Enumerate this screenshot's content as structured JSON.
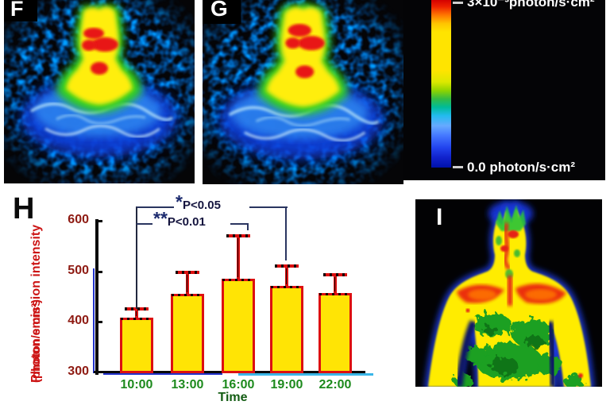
{
  "panels": {
    "f": {
      "label": "F",
      "description": "photon emission image, head and shoulders"
    },
    "g": {
      "label": "G",
      "description": "photon emission image, head and shoulders"
    },
    "h": {
      "label": "H"
    },
    "i": {
      "label": "I",
      "description": "thermographic image, upper torso"
    }
  },
  "colorbar": {
    "max_label": "3×10⁻³photon/s·cm²",
    "min_label": "0.0 photon/s·cm²",
    "gradient_stops": [
      [
        "#d40000",
        0
      ],
      [
        "#ee2200",
        4
      ],
      [
        "#ff7700",
        9
      ],
      [
        "#ffc400",
        14
      ],
      [
        "#ffe400",
        19
      ],
      [
        "#ffe400",
        42
      ],
      [
        "#dbe800",
        49
      ],
      [
        "#8fd400",
        54
      ],
      [
        "#33bb44",
        59
      ],
      [
        "#00bb99",
        64
      ],
      [
        "#22bbee",
        69
      ],
      [
        "#66aaff",
        75
      ],
      [
        "#4477ff",
        81
      ],
      [
        "#2244ee",
        88
      ],
      [
        "#1122cc",
        94
      ],
      [
        "#0011aa",
        100
      ]
    ]
  },
  "chart_data": {
    "type": "bar",
    "title": "",
    "categories": [
      "10:00",
      "13:00",
      "16:00",
      "19:00",
      "22:00"
    ],
    "values": [
      408,
      456,
      486,
      471,
      457
    ],
    "error_upper": [
      17,
      42,
      84,
      39,
      36
    ],
    "ylabel_line1": "Photon emission intensity",
    "ylabel_line2": "(photon/s·cm²)",
    "xlabel": "Time",
    "ylim": [
      300,
      600
    ],
    "yticks": [
      300,
      400,
      500,
      600
    ],
    "grid": false,
    "legend": "none",
    "bar_color": "#ffe405",
    "bar_border_color": "#dd1010",
    "error_color": "#dd1010",
    "axis_color": "#0a0a0a",
    "axis_accent_blue": "#2233cc",
    "axis_accent_cyan": "#3ab6e8",
    "significance": [
      {
        "stars": "*",
        "text": "P<0.05",
        "from": "10:00",
        "to": "19:00"
      },
      {
        "stars": "**",
        "text": "P<0.01",
        "from": "10:00",
        "to": "16:00"
      }
    ]
  }
}
